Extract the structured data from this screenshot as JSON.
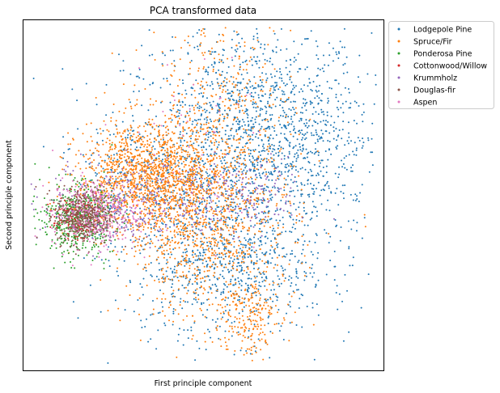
{
  "chart_data": {
    "type": "scatter",
    "title": "PCA transformed data",
    "xlabel": "First principle component",
    "ylabel": "Second principle component",
    "xticks": [],
    "yticks": [],
    "grid": false,
    "legend_position": "outside-top-right",
    "series": [
      {
        "name": "Lodgepole Pine",
        "color": "#1f77b4",
        "clusters": [
          {
            "cx": 0.62,
            "cy": 0.58,
            "sx": 0.17,
            "sy": 0.22,
            "n": 1500
          },
          {
            "cx": 0.55,
            "cy": 0.3,
            "sx": 0.12,
            "sy": 0.1,
            "n": 500
          },
          {
            "cx": 0.72,
            "cy": 0.7,
            "sx": 0.12,
            "sy": 0.12,
            "n": 450
          },
          {
            "cx": 0.35,
            "cy": 0.55,
            "sx": 0.1,
            "sy": 0.1,
            "n": 320
          }
        ]
      },
      {
        "name": "Spruce/Fir",
        "color": "#ff7f0e",
        "clusters": [
          {
            "cx": 0.35,
            "cy": 0.55,
            "sx": 0.1,
            "sy": 0.08,
            "n": 1400
          },
          {
            "cx": 0.52,
            "cy": 0.4,
            "sx": 0.12,
            "sy": 0.13,
            "n": 900
          },
          {
            "cx": 0.55,
            "cy": 0.75,
            "sx": 0.1,
            "sy": 0.13,
            "n": 350
          },
          {
            "cx": 0.62,
            "cy": 0.15,
            "sx": 0.04,
            "sy": 0.06,
            "n": 180
          }
        ]
      },
      {
        "name": "Ponderosa Pine",
        "color": "#2ca02c",
        "clusters": [
          {
            "cx": 0.15,
            "cy": 0.43,
            "sx": 0.05,
            "sy": 0.05,
            "n": 500
          }
        ]
      },
      {
        "name": "Cottonwood/Willow",
        "color": "#d62728",
        "clusters": [
          {
            "cx": 0.14,
            "cy": 0.44,
            "sx": 0.03,
            "sy": 0.03,
            "n": 120
          }
        ]
      },
      {
        "name": "Krummholz",
        "color": "#9467bd",
        "clusters": [
          {
            "cx": 0.3,
            "cy": 0.48,
            "sx": 0.12,
            "sy": 0.06,
            "n": 300
          },
          {
            "cx": 0.62,
            "cy": 0.5,
            "sx": 0.08,
            "sy": 0.05,
            "n": 150
          }
        ]
      },
      {
        "name": "Douglas-fir",
        "color": "#8c564b",
        "clusters": [
          {
            "cx": 0.17,
            "cy": 0.44,
            "sx": 0.04,
            "sy": 0.04,
            "n": 500
          }
        ]
      },
      {
        "name": "Aspen",
        "color": "#e377c2",
        "clusters": [
          {
            "cx": 0.2,
            "cy": 0.45,
            "sx": 0.06,
            "sy": 0.05,
            "n": 320
          },
          {
            "cx": 0.45,
            "cy": 0.6,
            "sx": 0.12,
            "sy": 0.15,
            "n": 60
          }
        ]
      }
    ]
  }
}
